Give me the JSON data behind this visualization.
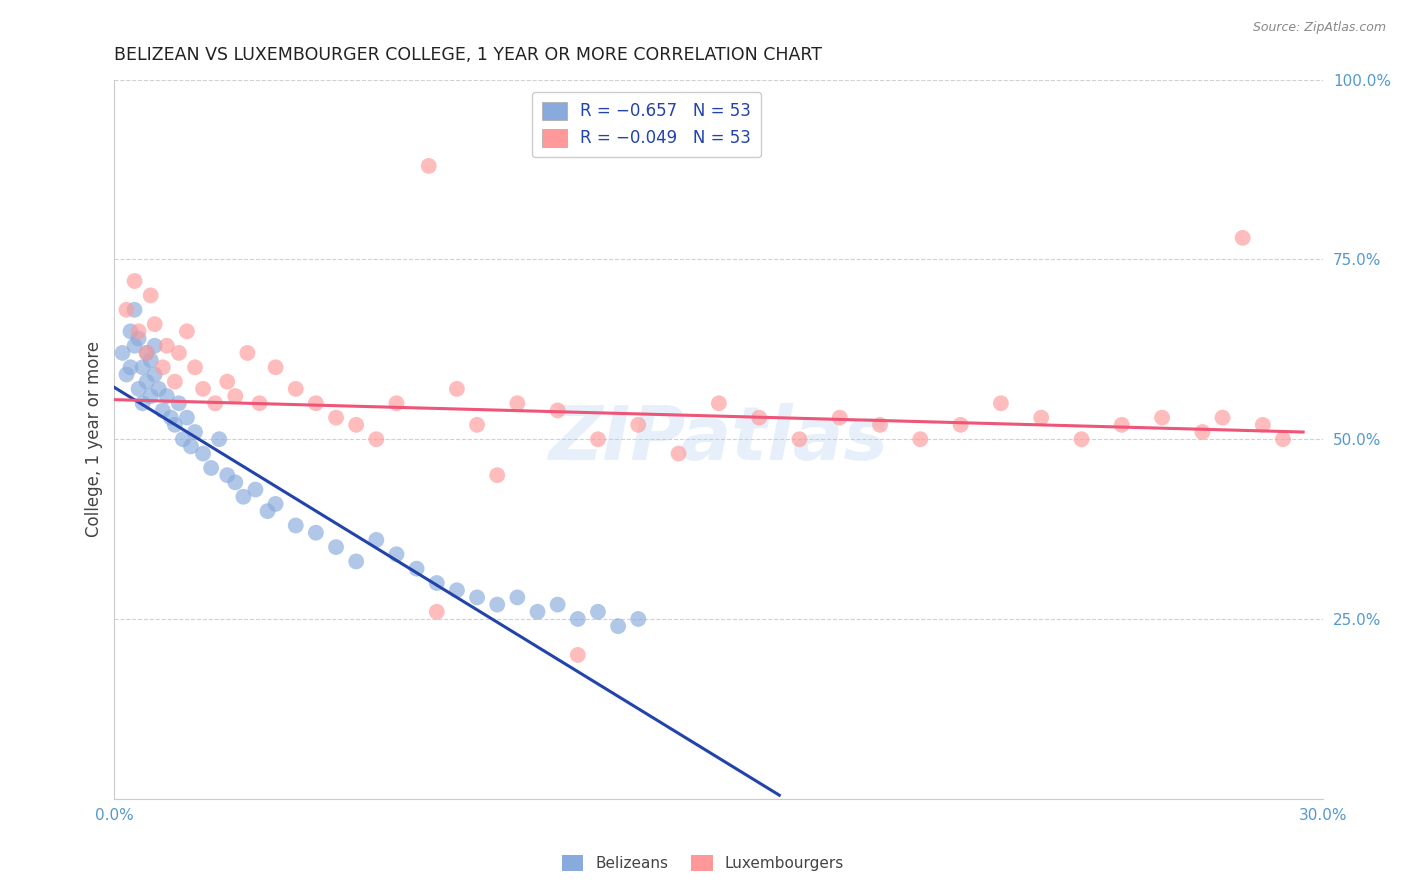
{
  "title": "BELIZEAN VS LUXEMBOURGER COLLEGE, 1 YEAR OR MORE CORRELATION CHART",
  "source": "Source: ZipAtlas.com",
  "ylabel": "College, 1 year or more",
  "x_min": 0.0,
  "x_max": 0.3,
  "y_min": 0.0,
  "y_max": 1.0,
  "blue_color": "#88AADD",
  "pink_color": "#FF9999",
  "blue_line_color": "#2244AA",
  "pink_line_color": "#EE5577",
  "watermark": "ZIPatlas",
  "legend_label_blue": "R = −0.657   N = 53",
  "legend_label_pink": "R = −0.049   N = 53",
  "series1_name": "Belizeans",
  "series2_name": "Luxembourgers",
  "tick_color": "#5599CC",
  "title_color": "#222222",
  "source_color": "#888888",
  "watermark_color": "#AACCEE",
  "grid_color": "#CCCCCC",
  "bel_x": [
    0.002,
    0.003,
    0.004,
    0.004,
    0.005,
    0.005,
    0.006,
    0.006,
    0.007,
    0.007,
    0.008,
    0.008,
    0.009,
    0.009,
    0.01,
    0.01,
    0.011,
    0.012,
    0.013,
    0.014,
    0.015,
    0.016,
    0.017,
    0.018,
    0.019,
    0.02,
    0.022,
    0.024,
    0.026,
    0.028,
    0.03,
    0.032,
    0.035,
    0.038,
    0.04,
    0.045,
    0.05,
    0.055,
    0.06,
    0.065,
    0.07,
    0.075,
    0.08,
    0.085,
    0.09,
    0.095,
    0.1,
    0.105,
    0.11,
    0.115,
    0.12,
    0.125,
    0.13
  ],
  "bel_y": [
    0.62,
    0.59,
    0.65,
    0.6,
    0.63,
    0.68,
    0.57,
    0.64,
    0.6,
    0.55,
    0.62,
    0.58,
    0.61,
    0.56,
    0.59,
    0.63,
    0.57,
    0.54,
    0.56,
    0.53,
    0.52,
    0.55,
    0.5,
    0.53,
    0.49,
    0.51,
    0.48,
    0.46,
    0.5,
    0.45,
    0.44,
    0.42,
    0.43,
    0.4,
    0.41,
    0.38,
    0.37,
    0.35,
    0.33,
    0.36,
    0.34,
    0.32,
    0.3,
    0.29,
    0.28,
    0.27,
    0.28,
    0.26,
    0.27,
    0.25,
    0.26,
    0.24,
    0.25
  ],
  "lux_x": [
    0.003,
    0.005,
    0.006,
    0.008,
    0.009,
    0.01,
    0.012,
    0.013,
    0.015,
    0.016,
    0.018,
    0.02,
    0.022,
    0.025,
    0.028,
    0.03,
    0.033,
    0.036,
    0.04,
    0.045,
    0.05,
    0.055,
    0.06,
    0.065,
    0.07,
    0.078,
    0.085,
    0.09,
    0.1,
    0.11,
    0.12,
    0.13,
    0.14,
    0.15,
    0.16,
    0.17,
    0.18,
    0.19,
    0.2,
    0.21,
    0.22,
    0.23,
    0.24,
    0.25,
    0.26,
    0.27,
    0.275,
    0.28,
    0.285,
    0.29,
    0.08,
    0.095,
    0.115
  ],
  "lux_y": [
    0.68,
    0.72,
    0.65,
    0.62,
    0.7,
    0.66,
    0.6,
    0.63,
    0.58,
    0.62,
    0.65,
    0.6,
    0.57,
    0.55,
    0.58,
    0.56,
    0.62,
    0.55,
    0.6,
    0.57,
    0.55,
    0.53,
    0.52,
    0.5,
    0.55,
    0.88,
    0.57,
    0.52,
    0.55,
    0.54,
    0.5,
    0.52,
    0.48,
    0.55,
    0.53,
    0.5,
    0.53,
    0.52,
    0.5,
    0.52,
    0.55,
    0.53,
    0.5,
    0.52,
    0.53,
    0.51,
    0.53,
    0.78,
    0.52,
    0.5,
    0.26,
    0.45,
    0.2
  ],
  "blue_line_x": [
    0.0,
    0.165
  ],
  "blue_line_y": [
    0.572,
    0.005
  ],
  "pink_line_x": [
    0.0,
    0.295
  ],
  "pink_line_y": [
    0.555,
    0.51
  ]
}
